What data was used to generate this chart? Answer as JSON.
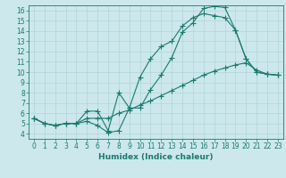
{
  "title": "",
  "xlabel": "Humidex (Indice chaleur)",
  "bg_color": "#cce8ec",
  "line_color": "#1a7a6e",
  "grid_color": "#b0d4d8",
  "xlim": [
    -0.5,
    23.5
  ],
  "ylim": [
    3.5,
    16.5
  ],
  "xticks": [
    0,
    1,
    2,
    3,
    4,
    5,
    6,
    7,
    8,
    9,
    10,
    11,
    12,
    13,
    14,
    15,
    16,
    17,
    18,
    19,
    20,
    21,
    22,
    23
  ],
  "yticks": [
    4,
    5,
    6,
    7,
    8,
    9,
    10,
    11,
    12,
    13,
    14,
    15,
    16
  ],
  "line1_x": [
    0,
    1,
    2,
    3,
    4,
    5,
    6,
    7,
    8,
    9,
    10,
    11,
    12,
    13,
    14,
    15,
    16,
    17,
    18,
    19,
    20,
    21,
    22,
    23
  ],
  "line1_y": [
    5.5,
    5.0,
    4.8,
    5.0,
    5.0,
    5.2,
    4.8,
    4.1,
    4.3,
    6.5,
    6.5,
    8.3,
    9.7,
    11.4,
    13.9,
    14.8,
    16.2,
    16.4,
    16.3,
    14.1,
    11.3,
    10.0,
    9.8,
    9.7
  ],
  "line2_x": [
    0,
    1,
    2,
    3,
    4,
    5,
    6,
    7,
    8,
    9,
    10,
    11,
    12,
    13,
    14,
    15,
    16,
    17,
    18,
    19,
    20,
    21,
    22,
    23
  ],
  "line2_y": [
    5.5,
    5.0,
    4.8,
    5.0,
    5.0,
    5.5,
    5.5,
    5.5,
    6.0,
    6.3,
    6.8,
    7.2,
    7.7,
    8.2,
    8.7,
    9.2,
    9.7,
    10.1,
    10.4,
    10.7,
    10.9,
    10.2,
    9.8,
    9.7
  ],
  "line3_x": [
    0,
    1,
    2,
    3,
    4,
    5,
    6,
    7,
    8,
    9,
    10,
    11,
    12,
    13,
    14,
    15,
    16,
    17,
    18,
    19,
    20,
    21,
    22,
    23
  ],
  "line3_y": [
    5.5,
    5.0,
    4.8,
    5.0,
    5.0,
    6.2,
    6.2,
    4.3,
    8.0,
    6.5,
    9.5,
    11.3,
    12.5,
    13.0,
    14.5,
    15.3,
    15.7,
    15.5,
    15.3,
    14.1,
    11.3,
    10.0,
    9.8,
    9.7
  ],
  "marker": "+",
  "markersize": 4,
  "linewidth": 0.8,
  "tick_fontsize": 5.5,
  "xlabel_fontsize": 6.5
}
